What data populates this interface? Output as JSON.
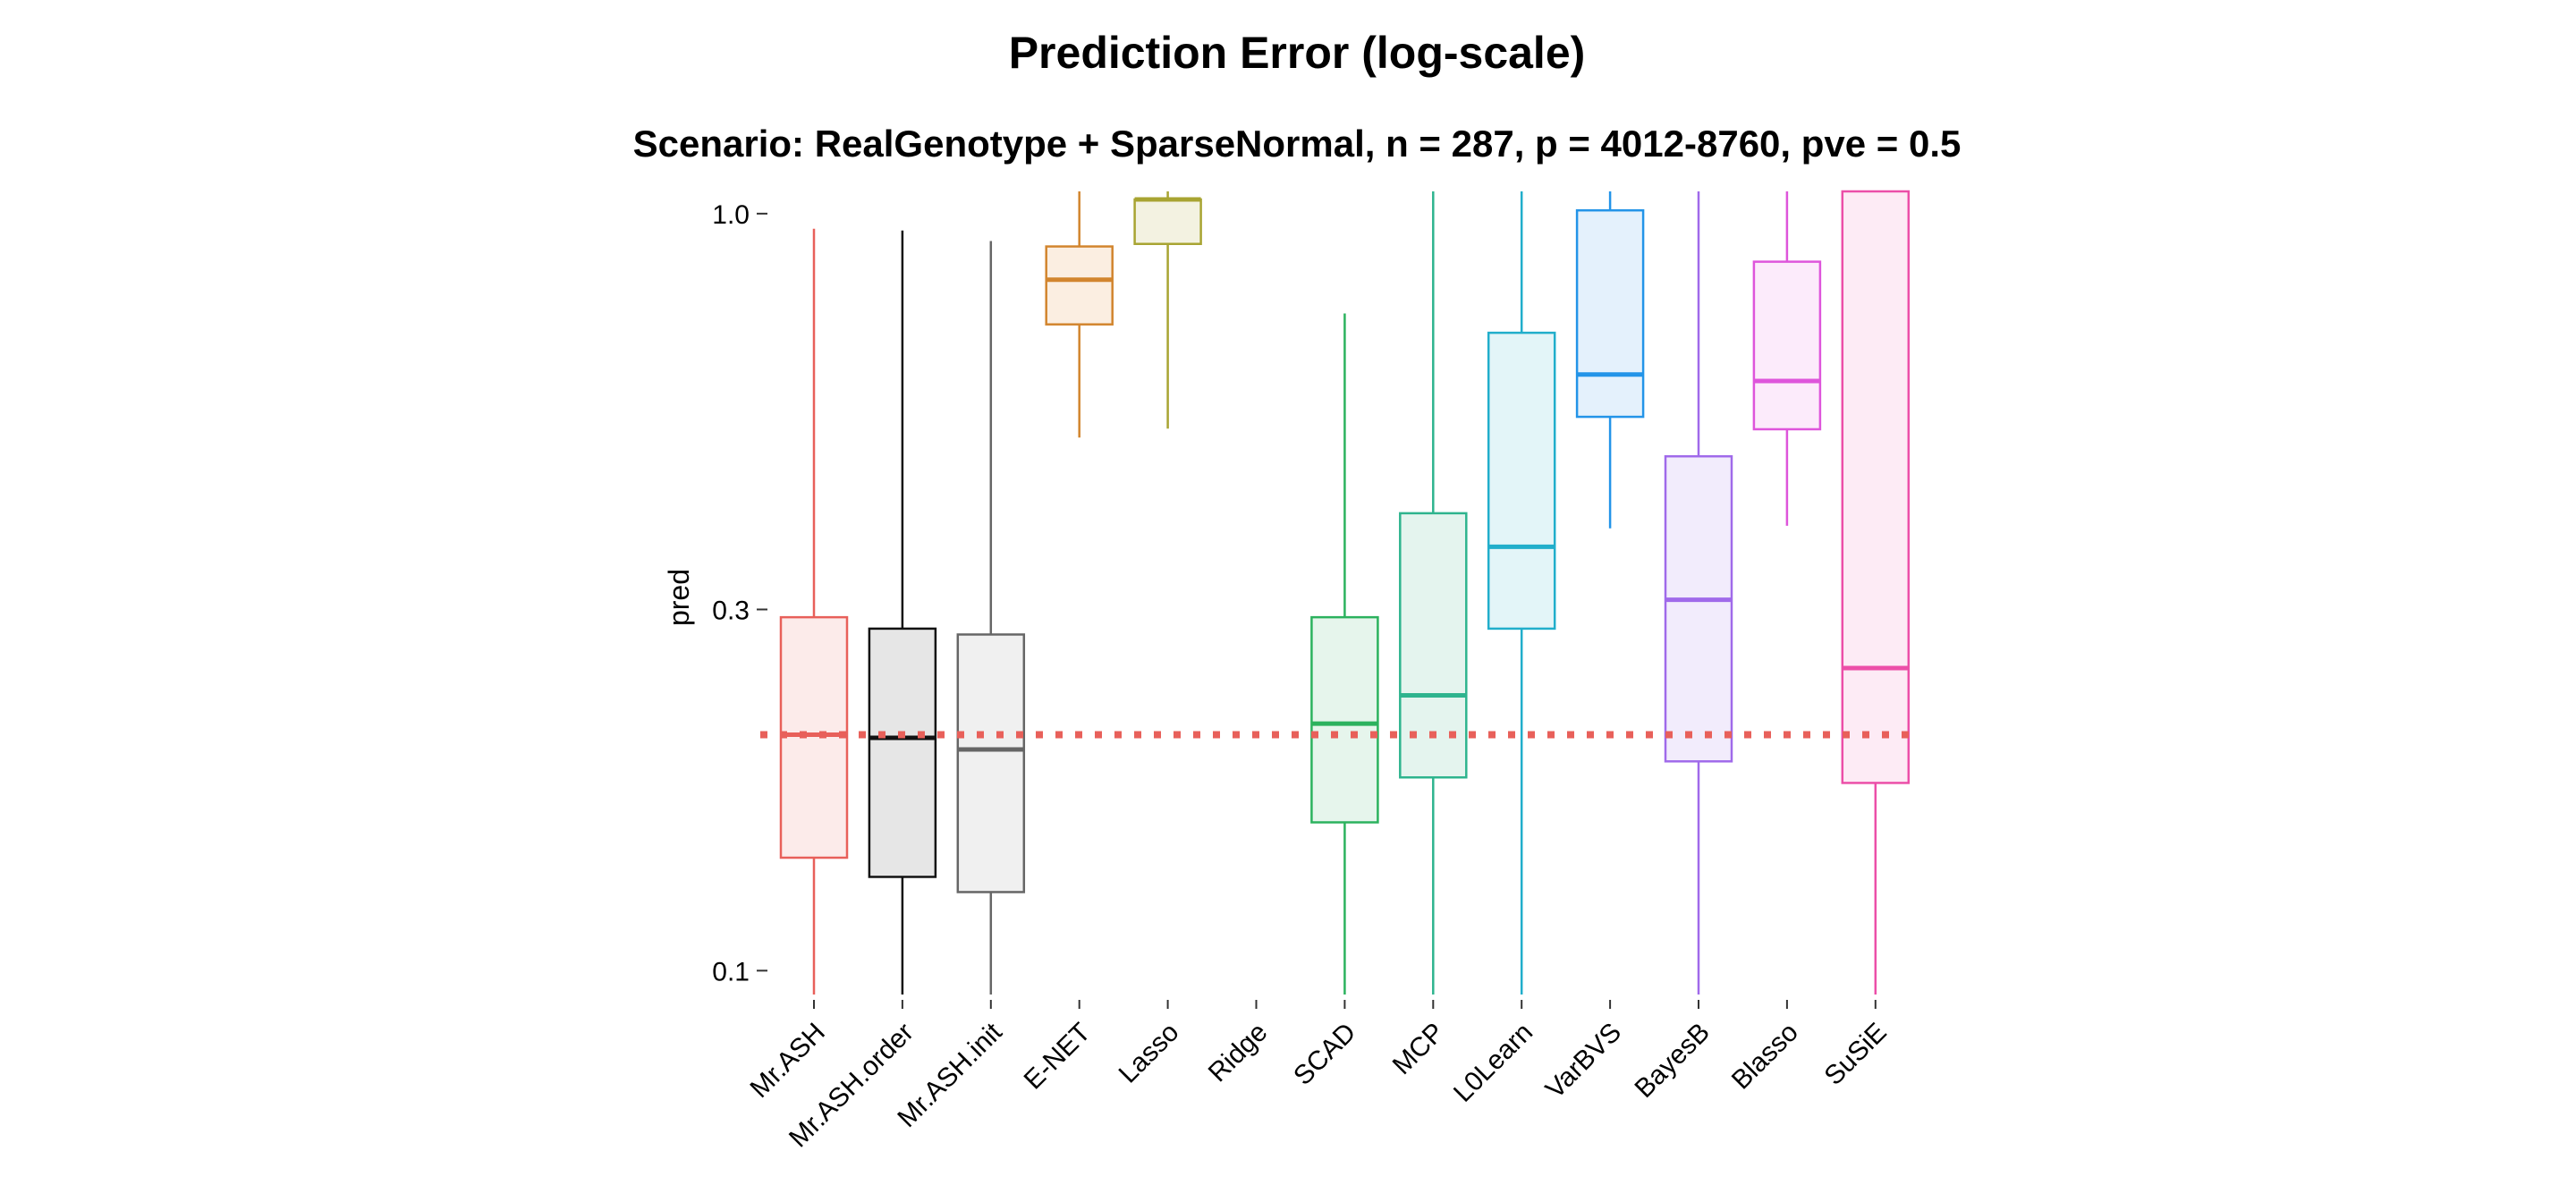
{
  "chart_data": {
    "type": "box",
    "title": "Prediction Error (log-scale)",
    "subtitle": "Scenario: RealGenotype + SparseNormal, n = 287, p = 4012-8760, pve = 0.5",
    "ylabel": "pred",
    "xlabel": "",
    "yscale": "log",
    "ylim": [
      0.093,
      1.07
    ],
    "yticks": [
      {
        "value": 0.1,
        "label": "0.1"
      },
      {
        "value": 0.3,
        "label": "0.3"
      },
      {
        "value": 1.0,
        "label": "1.0"
      }
    ],
    "grid": false,
    "legend": "none",
    "reference_line": {
      "value": 0.205,
      "color": "#E8605A",
      "style": "dotted"
    },
    "boxes": [
      {
        "name": "Mr.ASH",
        "color": "#E8605A",
        "fill": "#FCEBEA",
        "whisker_low": 0.093,
        "q1": 0.141,
        "median": 0.205,
        "q3": 0.293,
        "whisker_high": 0.955
      },
      {
        "name": "Mr.ASH.order",
        "color": "#111111",
        "fill": "#E6E6E6",
        "whisker_low": 0.093,
        "q1": 0.133,
        "median": 0.203,
        "q3": 0.283,
        "whisker_high": 0.95
      },
      {
        "name": "Mr.ASH.init",
        "color": "#666666",
        "fill": "#F0F0F0",
        "whisker_low": 0.093,
        "q1": 0.127,
        "median": 0.196,
        "q3": 0.278,
        "whisker_high": 0.92
      },
      {
        "name": "E-NET",
        "color": "#D2852E",
        "fill": "#FBEEE1",
        "whisker_low": 0.506,
        "q1": 0.714,
        "median": 0.818,
        "q3": 0.905,
        "whisker_high": 1.07
      },
      {
        "name": "Lasso",
        "color": "#A8A432",
        "fill": "#F3F2E1",
        "whisker_low": 0.52,
        "q1": 0.912,
        "median": 1.044,
        "q3": 1.044,
        "whisker_high": 1.07
      },
      {
        "name": "Ridge",
        "color": "#999999",
        "fill": "#FFFFFF",
        "whisker_low": null,
        "q1": null,
        "median": null,
        "q3": null,
        "whisker_high": null
      },
      {
        "name": "SCAD",
        "color": "#2CB25E",
        "fill": "#E6F5EC",
        "whisker_low": 0.093,
        "q1": 0.157,
        "median": 0.212,
        "q3": 0.293,
        "whisker_high": 0.738
      },
      {
        "name": "MCP",
        "color": "#2EB48E",
        "fill": "#E4F4EE",
        "whisker_low": 0.093,
        "q1": 0.18,
        "median": 0.231,
        "q3": 0.402,
        "whisker_high": 1.07
      },
      {
        "name": "L0Learn",
        "color": "#21AECB",
        "fill": "#E3F5F8",
        "whisker_low": 0.093,
        "q1": 0.283,
        "median": 0.363,
        "q3": 0.696,
        "whisker_high": 1.07
      },
      {
        "name": "VarBVS",
        "color": "#2394E8",
        "fill": "#E4F1FC",
        "whisker_low": 0.384,
        "q1": 0.539,
        "median": 0.613,
        "q3": 1.01,
        "whisker_high": 1.07
      },
      {
        "name": "BayesB",
        "color": "#A06AEA",
        "fill": "#F2ECFC",
        "whisker_low": 0.093,
        "q1": 0.189,
        "median": 0.309,
        "q3": 0.478,
        "whisker_high": 1.07
      },
      {
        "name": "Blasso",
        "color": "#DE55DB",
        "fill": "#FCEBFB",
        "whisker_low": 0.387,
        "q1": 0.519,
        "median": 0.601,
        "q3": 0.864,
        "whisker_high": 1.07
      },
      {
        "name": "SuSiE",
        "color": "#EC4FA8",
        "fill": "#FDEBF5",
        "whisker_low": 0.093,
        "q1": 0.177,
        "median": 0.251,
        "q3": 1.07,
        "whisker_high": 1.07
      }
    ]
  }
}
